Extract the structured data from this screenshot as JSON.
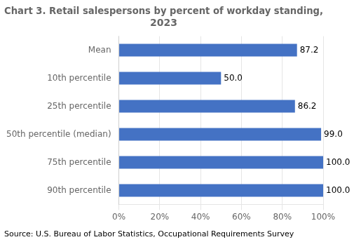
{
  "chart_data": {
    "type": "bar",
    "orientation": "horizontal",
    "title": "Chart 3. Retail salespersons by percent of workday standing,\n2023",
    "categories": [
      "Mean",
      "10th percentile",
      "25th percentile",
      "50th percentile (median)",
      "75th percentile",
      "90th percentile"
    ],
    "values": [
      87.2,
      50.0,
      86.2,
      99.0,
      100.0,
      100.0
    ],
    "value_labels": [
      "87.2",
      "50.0",
      "86.2",
      "99.0",
      "100.0",
      "100.0"
    ],
    "data_labels": true,
    "color": "#4472C4",
    "xlim": [
      0,
      100
    ],
    "xticks": [
      {
        "value": 0,
        "label": "0%"
      },
      {
        "value": 20,
        "label": "20%"
      },
      {
        "value": 40,
        "label": "40%"
      },
      {
        "value": 60,
        "label": "60%"
      },
      {
        "value": 80,
        "label": "80%"
      },
      {
        "value": 100,
        "label": "100%"
      }
    ],
    "grid": true,
    "annotations": [
      "Source: U.S. Bureau of Labor Statistics, Occupational Requirements Survey"
    ]
  }
}
